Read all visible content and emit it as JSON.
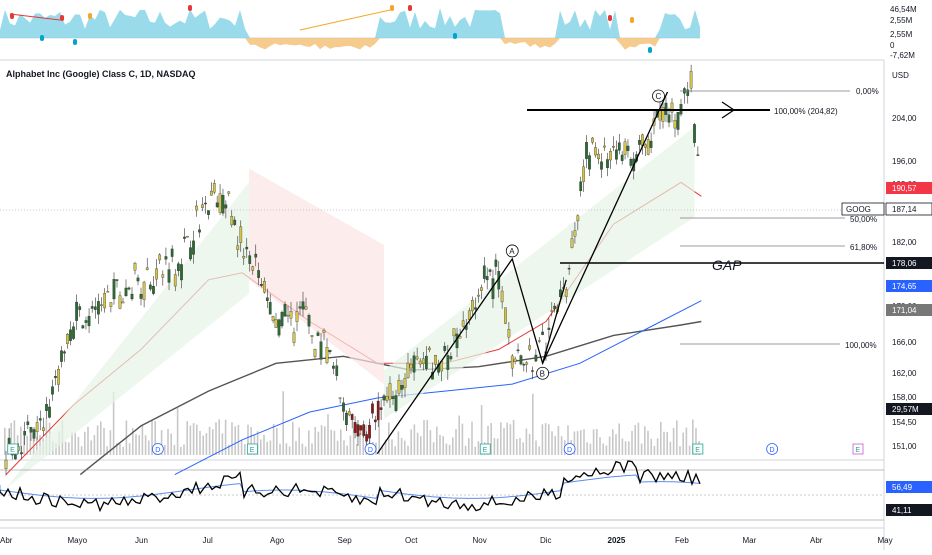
{
  "chart_title": "Alphabet Inc (Google) Class C, 1D, NASDAQ",
  "currency": "USD",
  "ticker": "GOOG",
  "x_axis_labels": [
    "Abr",
    "Mayo",
    "Jun",
    "Jul",
    "Ago",
    "Sep",
    "Oct",
    "Nov",
    "Dic",
    "2025",
    "Feb",
    "Mar",
    "Abr",
    "May"
  ],
  "oscillator_scale": [
    "46,54M",
    "2,55M",
    "2,55M",
    "0",
    "-7,62M"
  ],
  "price_scale": [
    "0,00%",
    "204,00",
    "196,00",
    "192,00",
    "182,00",
    "178,06",
    "170,00",
    "166,00",
    "162,00",
    "158,00",
    "154,50",
    "151,00"
  ],
  "price_tags": {
    "last": "190,57",
    "goog": "187,14",
    "gap": "178,06",
    "sma_blue": "174,65",
    "sma_gray": "171,04",
    "volume": "29,57M"
  },
  "fib_labels": {
    "top": "0,00%",
    "ext": "100,00% (204,82)",
    "half": "50,00%",
    "golden": "61,80%",
    "full": "100,00%"
  },
  "annotations": {
    "gap": "GAP",
    "wave_a": "A",
    "wave_b": "B",
    "wave_c": "C"
  },
  "event_markers": [
    {
      "label": "E",
      "month_index": 0.1
    },
    {
      "label": "D",
      "month_index": 2.25
    },
    {
      "label": "E",
      "month_index": 3.65
    },
    {
      "label": "D",
      "month_index": 5.4
    },
    {
      "label": "E",
      "month_index": 7.1
    },
    {
      "label": "D",
      "month_index": 8.35
    },
    {
      "label": "E",
      "month_index": 10.25
    },
    {
      "label": "D",
      "month_index": 11.35
    },
    {
      "label": "E",
      "month_index": 12.8
    }
  ],
  "rsi_scale": [
    "56,49",
    "41,11"
  ],
  "colors": {
    "bull": "#2d6a33",
    "bear": "#8b1a1a",
    "ema": "#e53935",
    "sma_blue": "#2962ff",
    "sma_gray": "#555555",
    "last": "#f23645",
    "volume": "#c8c8c8"
  },
  "chart_data": {
    "type": "line",
    "title": "Alphabet Inc (Google) Class C, 1D, NASDAQ",
    "xlabel": "",
    "ylabel": "USD",
    "ylim": [
      150,
      210
    ],
    "x": [
      "Abr",
      "Mayo",
      "Jun",
      "Jul",
      "Ago",
      "Sep",
      "Oct",
      "Nov",
      "Dic",
      "2025",
      "Feb"
    ],
    "series": [
      {
        "name": "GOOG",
        "values": [
          155,
          173,
          178,
          188,
          168,
          157,
          166,
          176,
          170,
          197,
          187.14
        ]
      },
      {
        "name": "",
        "values": [
          150,
          155,
          162,
          175,
          178,
          172,
          166,
          168,
          175,
          190,
          188
        ]
      },
      {
        "name": "",
        "values": [
          150,
          150,
          152,
          156,
          160,
          164,
          167,
          167,
          168,
          171,
          172
        ]
      },
      {
        "name": "",
        "values": [
          150,
          150,
          150,
          150,
          156,
          162,
          161,
          163,
          166,
          170,
          175
        ]
      }
    ]
  }
}
